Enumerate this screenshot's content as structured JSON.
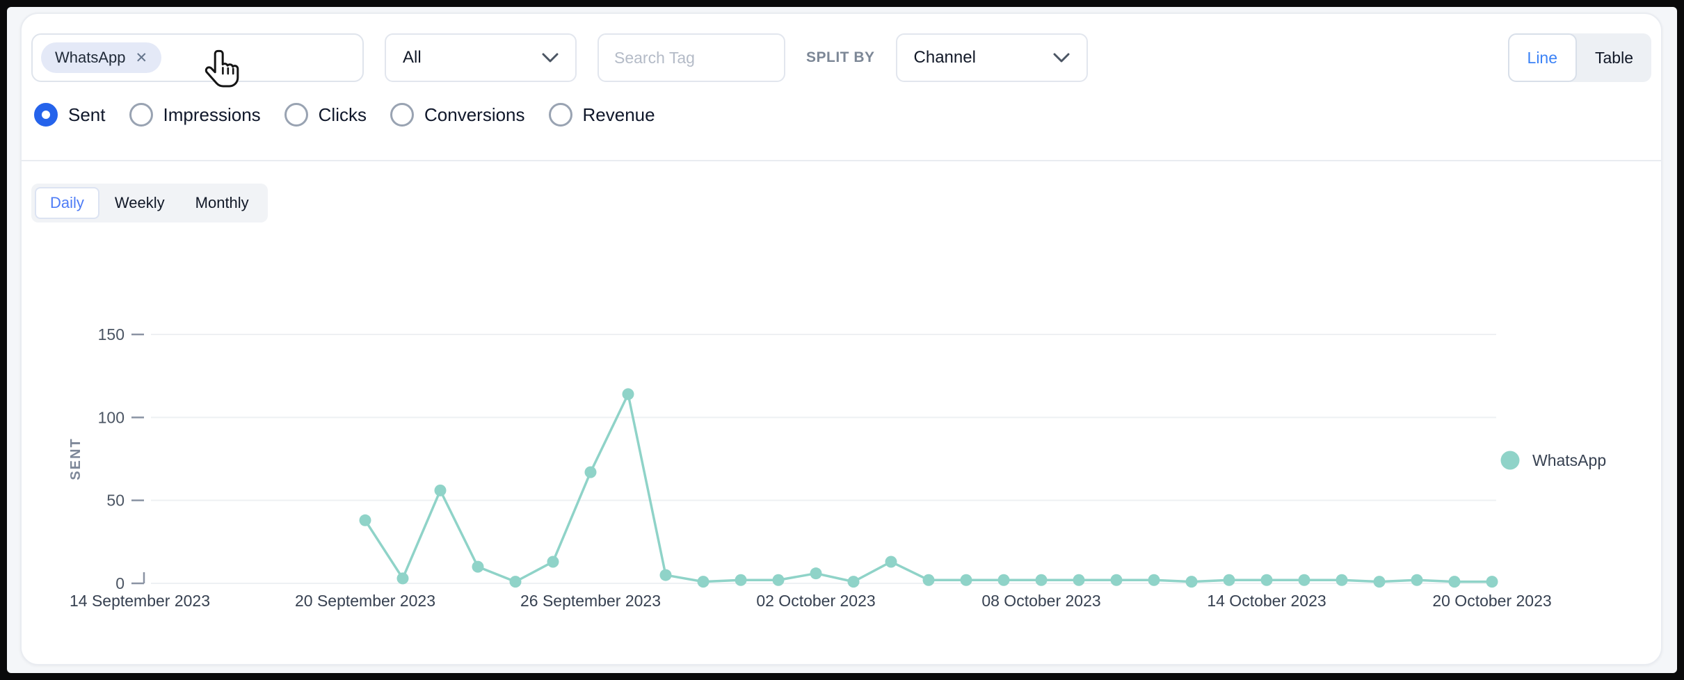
{
  "header": {
    "tag_filter": {
      "chips": [
        {
          "label": "WhatsApp"
        }
      ],
      "remove_icon_glyph": "✕"
    },
    "category_select": {
      "value": "All"
    },
    "tag_search": {
      "placeholder": "Search Tag"
    },
    "split_by_label": "SPLIT BY",
    "split_select": {
      "value": "Channel"
    },
    "view_toggle": {
      "options": [
        "Line",
        "Table"
      ],
      "active": "Line"
    },
    "metrics": {
      "options": [
        "Sent",
        "Impressions",
        "Clicks",
        "Conversions",
        "Revenue"
      ],
      "selected": "Sent"
    }
  },
  "granularity_tabs": {
    "options": [
      "Daily",
      "Weekly",
      "Monthly"
    ],
    "active": "Daily"
  },
  "chart_data": {
    "type": "line",
    "title": "",
    "xlabel": "",
    "ylabel": "SENT",
    "ylim": [
      0,
      160
    ],
    "yticks": [
      0,
      50,
      100,
      150
    ],
    "grid": true,
    "legend_position": "right",
    "x_axis_start": "14 September 2023",
    "x_axis_days": 37,
    "x_tick_labels": [
      "14 September 2023",
      "20 September 2023",
      "26 September 2023",
      "02 October 2023",
      "08 October 2023",
      "14 October 2023",
      "20 October 2023"
    ],
    "data_start_day_index": 6,
    "series": [
      {
        "name": "WhatsApp",
        "color": "#8fd3c8",
        "cadence": "daily",
        "first_point_date": "20 September 2023",
        "values": [
          38,
          3,
          56,
          10,
          1,
          13,
          67,
          114,
          5,
          1,
          2,
          2,
          6,
          1,
          13,
          2,
          2,
          2,
          2,
          2,
          2,
          2,
          1,
          2,
          2,
          2,
          2,
          1,
          2,
          1,
          1
        ]
      }
    ]
  },
  "colors": {
    "accent_blue": "#2563eb",
    "link_blue": "#3b82f6",
    "series_teal": "#8fd3c8",
    "chip_bg": "#e4e9f7"
  }
}
